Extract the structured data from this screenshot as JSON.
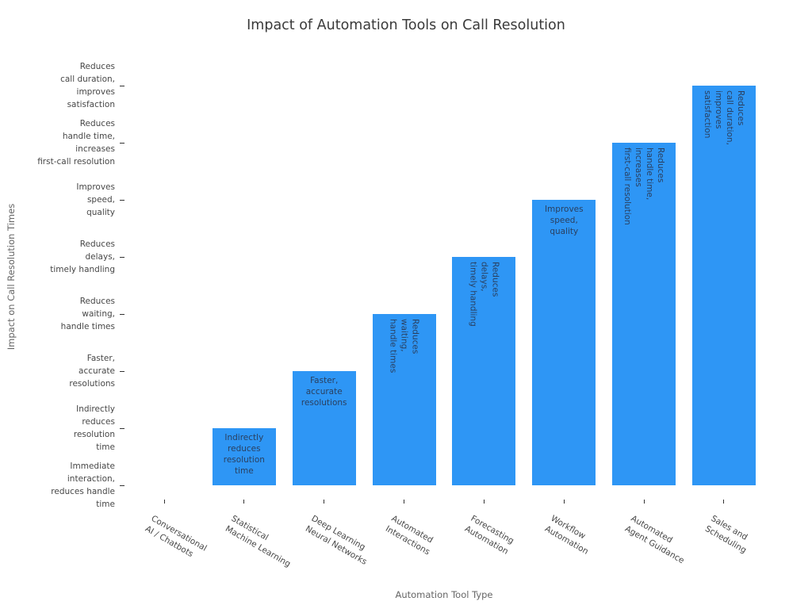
{
  "chart_data": {
    "type": "bar",
    "title": "Impact of Automation Tools on Call Resolution",
    "xlabel": "Automation Tool Type",
    "ylabel": "Impact on Call Resolution Times",
    "grid": false,
    "legend": "none",
    "colors": {
      "bar": "#2e96f5",
      "bar_label": "#2a3f5f",
      "tick_label": "#474747",
      "axis_title": "#666666",
      "title": "#3a3a3a",
      "tick_mark": "#333333"
    },
    "y_axis": {
      "scale": "ordinal",
      "tick_labels": [
        "Immediate\ninteraction,\nreduces handle\ntime",
        "Indirectly\nreduces\nresolution\ntime",
        "Faster,\naccurate\nresolutions",
        "Reduces\nwaiting,\nhandle times",
        "Reduces\ndelays,\ntimely handling",
        "Improves\nspeed,\nquality",
        "Reduces\nhandle time,\nincreases\nfirst-call resolution",
        "Reduces\ncall duration,\nimproves\nsatisfaction"
      ]
    },
    "bars": [
      {
        "category": "Conversational AI / Chatbots",
        "x_tick": "Conversational\nAI / Chatbots",
        "level": 0,
        "impact": "Immediate interaction, reduces handle time",
        "bar_label": "",
        "label_orientation": "none"
      },
      {
        "category": "Statistical Machine Learning",
        "x_tick": "Statistical\nMachine Learning",
        "level": 1,
        "impact": "Indirectly reduces resolution time",
        "bar_label": "Indirectly\nreduces\nresolution\ntime",
        "label_orientation": "horizontal"
      },
      {
        "category": "Deep Learning Neural Networks",
        "x_tick": "Deep Learning\nNeural Networks",
        "level": 2,
        "impact": "Faster, accurate resolutions",
        "bar_label": "Faster,\naccurate\nresolutions",
        "label_orientation": "horizontal"
      },
      {
        "category": "Automated Interactions",
        "x_tick": "Automated\nInteractions",
        "level": 3,
        "impact": "Reduces waiting, handle times",
        "bar_label": "Reduces\nwaiting,\nhandle times",
        "label_orientation": "vertical"
      },
      {
        "category": "Forecasting Automation",
        "x_tick": "Forecasting\nAutomation",
        "level": 4,
        "impact": "Reduces delays, timely handling",
        "bar_label": "Reduces\ndelays,\ntimely handling",
        "label_orientation": "vertical"
      },
      {
        "category": "Workflow Automation",
        "x_tick": "Workflow\nAutomation",
        "level": 5,
        "impact": "Improves speed, quality",
        "bar_label": "Improves\nspeed,\nquality",
        "label_orientation": "horizontal"
      },
      {
        "category": "Automated Agent Guidance",
        "x_tick": "Automated\nAgent Guidance",
        "level": 6,
        "impact": "Reduces handle time, increases first-call resolution",
        "bar_label": "Reduces\nhandle time,\nincreases\nfirst-call resolution",
        "label_orientation": "vertical"
      },
      {
        "category": "Sales and Scheduling",
        "x_tick": "Sales and\nScheduling",
        "level": 7,
        "impact": "Reduces call duration, improves satisfaction",
        "bar_label": "Reduces\ncall duration,\nimproves\nsatisfaction",
        "label_orientation": "vertical"
      }
    ]
  }
}
